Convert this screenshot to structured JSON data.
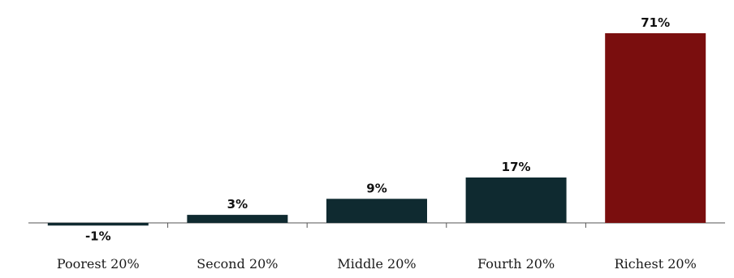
{
  "chart_data": {
    "type": "bar",
    "categories": [
      "Poorest 20%",
      "Second 20%",
      "Middle 20%",
      "Fourth 20%",
      "Richest 20%"
    ],
    "values": [
      -1,
      3,
      9,
      17,
      71
    ],
    "value_labels": [
      "-1%",
      "3%",
      "9%",
      "17%",
      "71%"
    ],
    "unit": "%",
    "title": "",
    "xlabel": "",
    "ylabel": "",
    "ylim": [
      -1,
      71
    ],
    "grid": false,
    "legend": "none",
    "colors": [
      "#0f2a30",
      "#0f2a30",
      "#0f2a30",
      "#0f2a30",
      "#7a0e0e"
    ],
    "axis_color": "#555555"
  }
}
